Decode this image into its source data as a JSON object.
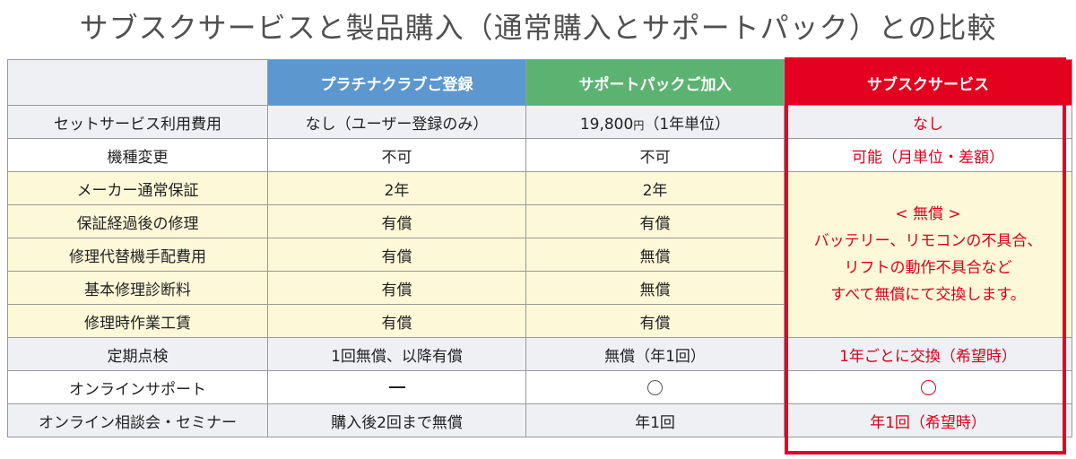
{
  "title": "サブスクサービスと製品購入（通常購入とサポートパック）との比較",
  "headers": {
    "platinum": "プラチナクラブご登録",
    "support_pack": "サポートパックご加入",
    "subscription": "サブスクサービス"
  },
  "rows": {
    "set_fee": {
      "label": "セットサービス利用費用",
      "platinum": "なし（ユーザー登録のみ）",
      "support_pack_amount": "19,800",
      "support_pack_unit": "円",
      "support_pack_suffix": "（1年単位）",
      "subscription": "なし"
    },
    "model_change": {
      "label": "機種変更",
      "platinum": "不可",
      "support_pack": "不可",
      "subscription": "可能（月単位・差額）"
    },
    "warranty": {
      "label": "メーカー通常保証",
      "platinum": "2年",
      "support_pack": "2年"
    },
    "post_warranty_repair": {
      "label": "保証経過後の修理",
      "platinum": "有償",
      "support_pack": "有償"
    },
    "replacement_fee": {
      "label": "修理代替機手配費用",
      "platinum": "有償",
      "support_pack": "無償"
    },
    "diagnosis_fee": {
      "label": "基本修理診断料",
      "platinum": "有償",
      "support_pack": "無償"
    },
    "labor_fee": {
      "label": "修理時作業工賃",
      "platinum": "有償",
      "support_pack": "有償"
    },
    "inspection": {
      "label": "定期点検",
      "platinum": "1回無償、以降有償",
      "support_pack": "無償（年1回）",
      "subscription": "1年ごとに交換（希望時）"
    },
    "online_support": {
      "label": "オンラインサポート",
      "platinum_icon": "dash-icon",
      "support_pack_icon": "circle-icon",
      "subscription_icon": "circle-icon"
    },
    "seminar": {
      "label": "オンライン相談会・セミナー",
      "platinum": "購入後2回まで無償",
      "support_pack": "年1回",
      "subscription": "年1回（希望時）"
    }
  },
  "subscription_merged": {
    "line1": "< 無償 >",
    "line2": "バッテリー、リモコンの不具合、",
    "line3": "リフトの動作不具合など",
    "line4": "すべて無償にて交換します。"
  },
  "colors": {
    "header_blue": "#5d97cf",
    "header_green": "#5cb371",
    "header_red": "#e4001f",
    "highlight_text": "#d9001b",
    "row_yellow": "#fdf8d8",
    "row_gray": "#eef0f3"
  }
}
